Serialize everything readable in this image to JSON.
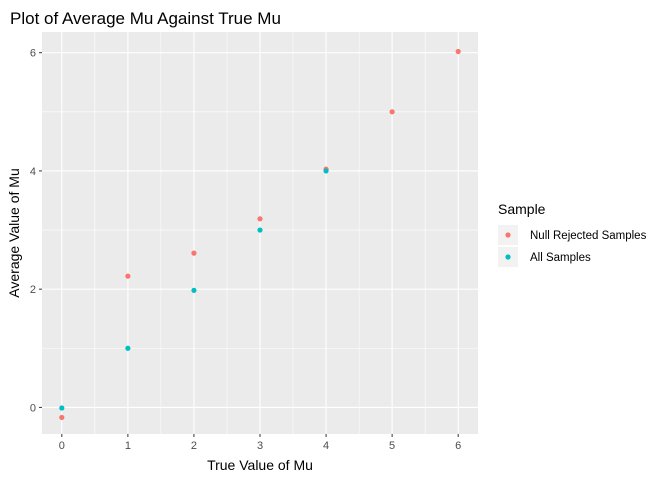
{
  "chart_data": {
    "type": "scatter",
    "title": "Plot of Average Mu Against True Mu",
    "xlabel": "True Value of Mu",
    "ylabel": "Average Value of Mu",
    "xlim": [
      -0.3,
      6.3
    ],
    "ylim": [
      -0.45,
      6.35
    ],
    "x_ticks": [
      0,
      1,
      2,
      3,
      4,
      5,
      6
    ],
    "y_ticks": [
      0,
      2,
      4,
      6
    ],
    "x_tick_labels": [
      "0",
      "1",
      "2",
      "3",
      "4",
      "5",
      "6"
    ],
    "y_tick_labels": [
      "0",
      "2",
      "4",
      "6"
    ],
    "grid": true,
    "legend": {
      "title": "Sample",
      "position": "right"
    },
    "series": [
      {
        "name": "Null Rejected Samples",
        "color": "#F8766D",
        "x": [
          0,
          1,
          2,
          3,
          4,
          5,
          6
        ],
        "y": [
          -0.17,
          2.22,
          2.61,
          3.19,
          4.03,
          5.0,
          6.02
        ]
      },
      {
        "name": "All Samples",
        "color": "#00BFC4",
        "x": [
          0,
          1,
          2,
          3,
          4
        ],
        "y": [
          -0.01,
          1.0,
          1.98,
          3.0,
          4.0
        ]
      }
    ],
    "panel_background": "#EBEBEB",
    "grid_color": "#FFFFFF"
  }
}
